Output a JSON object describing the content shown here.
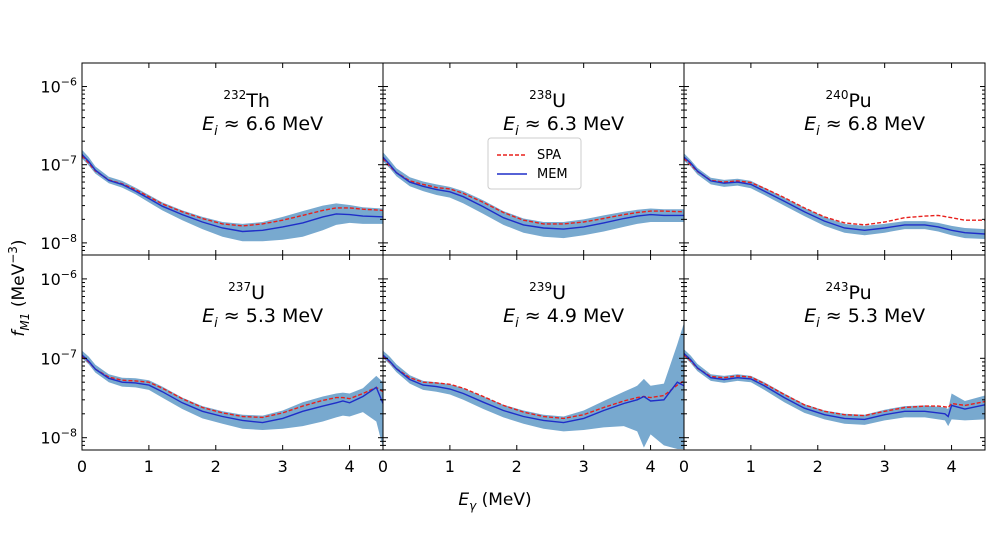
{
  "chart_data": {
    "type": "line",
    "xlabel_main": "E",
    "xlabel_sub": "γ",
    "xlabel_unit": " (MeV)",
    "ylabel_main": "f",
    "ylabel_sub": "M1",
    "ylabel_unit": " (MeV",
    "ylabel_exp": "−3",
    "ylabel_close": ")",
    "xlim": [
      0,
      4.5
    ],
    "ylim": [
      7e-09,
      2e-06
    ],
    "yscale": "log",
    "x_ticks": [
      0,
      1,
      2,
      3,
      4
    ],
    "y_ticks": [
      {
        "value": 1e-06,
        "base": "10",
        "exp": "−6"
      },
      {
        "value": 1e-07,
        "base": "10",
        "exp": "−7"
      },
      {
        "value": 1e-08,
        "base": "10",
        "exp": "−8"
      }
    ],
    "legend": {
      "position": "inside panel 2 (upper left area)",
      "entries": [
        {
          "name": "SPA",
          "color": "#e8201c",
          "style": "dashed"
        },
        {
          "name": "MEM",
          "color": "#1f2ec8",
          "style": "solid"
        }
      ]
    },
    "band_color": "#78a9cf",
    "panels": [
      {
        "nucleus_mass": "232",
        "nucleus_symbol": "Th",
        "energy_label": "E",
        "energy_sub": "i",
        "energy_value": " ≈ 6.6 MeV",
        "x": [
          0,
          0.1,
          0.2,
          0.4,
          0.6,
          0.8,
          1.0,
          1.2,
          1.5,
          1.8,
          2.1,
          2.4,
          2.7,
          3.0,
          3.3,
          3.6,
          3.8,
          4.0,
          4.2,
          4.5
        ],
        "mem": [
          1.35e-07,
          1.1e-07,
          8.5e-08,
          6.3e-08,
          5.6e-08,
          4.6e-08,
          3.7e-08,
          2.95e-08,
          2.3e-08,
          1.85e-08,
          1.55e-08,
          1.4e-08,
          1.45e-08,
          1.6e-08,
          1.8e-08,
          2.15e-08,
          2.35e-08,
          2.3e-08,
          2.2e-08,
          2.15e-08
        ],
        "spa": [
          1.3e-07,
          1.05e-07,
          8.3e-08,
          6.4e-08,
          5.7e-08,
          4.8e-08,
          3.9e-08,
          3.15e-08,
          2.5e-08,
          2.05e-08,
          1.75e-08,
          1.65e-08,
          1.75e-08,
          1.95e-08,
          2.25e-08,
          2.6e-08,
          2.8e-08,
          2.8e-08,
          2.7e-08,
          2.6e-08
        ],
        "lo": [
          1.2e-07,
          9.8e-08,
          7.7e-08,
          5.8e-08,
          5.1e-08,
          4.2e-08,
          3.3e-08,
          2.6e-08,
          1.95e-08,
          1.5e-08,
          1.2e-08,
          1.05e-08,
          1.05e-08,
          1.1e-08,
          1.2e-08,
          1.45e-08,
          1.7e-08,
          1.8e-08,
          1.75e-08,
          1.75e-08
        ],
        "hi": [
          1.55e-07,
          1.25e-07,
          9.5e-08,
          7e-08,
          6.2e-08,
          5.1e-08,
          4.1e-08,
          3.3e-08,
          2.6e-08,
          2.15e-08,
          1.85e-08,
          1.75e-08,
          1.85e-08,
          2.15e-08,
          2.55e-08,
          3e-08,
          3.2e-08,
          3.05e-08,
          2.85e-08,
          2.75e-08
        ]
      },
      {
        "nucleus_mass": "238",
        "nucleus_symbol": "U",
        "energy_label": "E",
        "energy_sub": "i",
        "energy_value": " ≈ 6.3 MeV",
        "x": [
          0,
          0.1,
          0.2,
          0.4,
          0.6,
          0.8,
          1.0,
          1.2,
          1.5,
          1.8,
          2.1,
          2.4,
          2.7,
          3.0,
          3.3,
          3.6,
          3.8,
          4.0,
          4.2,
          4.5
        ],
        "mem": [
          1.25e-07,
          1e-07,
          7.9e-08,
          6e-08,
          5.3e-08,
          4.8e-08,
          4.5e-08,
          3.9e-08,
          2.9e-08,
          2.1e-08,
          1.7e-08,
          1.55e-08,
          1.5e-08,
          1.6e-08,
          1.8e-08,
          2.05e-08,
          2.2e-08,
          2.3e-08,
          2.25e-08,
          2.25e-08
        ],
        "spa": [
          1.2e-07,
          9.6e-08,
          7.9e-08,
          6.2e-08,
          5.6e-08,
          5.1e-08,
          4.9e-08,
          4.3e-08,
          3.3e-08,
          2.45e-08,
          1.95e-08,
          1.75e-08,
          1.75e-08,
          1.85e-08,
          2.05e-08,
          2.3e-08,
          2.45e-08,
          2.55e-08,
          2.55e-08,
          2.5e-08
        ],
        "lo": [
          1.1e-07,
          9e-08,
          7.1e-08,
          5.3e-08,
          4.6e-08,
          4.1e-08,
          3.8e-08,
          3.2e-08,
          2.35e-08,
          1.7e-08,
          1.35e-08,
          1.2e-08,
          1.15e-08,
          1.25e-08,
          1.4e-08,
          1.6e-08,
          1.75e-08,
          1.85e-08,
          1.85e-08,
          1.85e-08
        ],
        "hi": [
          1.45e-07,
          1.15e-07,
          9e-08,
          6.9e-08,
          6.1e-08,
          5.6e-08,
          5.2e-08,
          4.6e-08,
          3.5e-08,
          2.55e-08,
          2.05e-08,
          1.85e-08,
          1.85e-08,
          2e-08,
          2.25e-08,
          2.5e-08,
          2.65e-08,
          2.75e-08,
          2.7e-08,
          2.7e-08
        ]
      },
      {
        "nucleus_mass": "240",
        "nucleus_symbol": "Pu",
        "energy_label": "E",
        "energy_sub": "i",
        "energy_value": " ≈ 6.8 MeV",
        "x": [
          0,
          0.1,
          0.2,
          0.4,
          0.6,
          0.8,
          1.0,
          1.2,
          1.5,
          1.8,
          2.1,
          2.4,
          2.7,
          3.0,
          3.3,
          3.6,
          3.8,
          4.0,
          4.2,
          4.5
        ],
        "mem": [
          1.25e-07,
          1.05e-07,
          8.3e-08,
          6.2e-08,
          5.8e-08,
          6e-08,
          5.6e-08,
          4.6e-08,
          3.4e-08,
          2.5e-08,
          1.9e-08,
          1.55e-08,
          1.45e-08,
          1.55e-08,
          1.7e-08,
          1.7e-08,
          1.6e-08,
          1.45e-08,
          1.35e-08,
          1.3e-08
        ],
        "spa": [
          1.2e-07,
          1e-07,
          8.2e-08,
          6.3e-08,
          6e-08,
          6.2e-08,
          5.9e-08,
          5e-08,
          3.8e-08,
          2.8e-08,
          2.15e-08,
          1.8e-08,
          1.7e-08,
          1.85e-08,
          2.1e-08,
          2.2e-08,
          2.25e-08,
          2.1e-08,
          1.95e-08,
          1.95e-08
        ],
        "lo": [
          1.12e-07,
          9.5e-08,
          7.5e-08,
          5.6e-08,
          5.2e-08,
          5.4e-08,
          5e-08,
          4.1e-08,
          3e-08,
          2.2e-08,
          1.65e-08,
          1.35e-08,
          1.25e-08,
          1.35e-08,
          1.5e-08,
          1.5e-08,
          1.4e-08,
          1.25e-08,
          1.15e-08,
          1.12e-08
        ],
        "hi": [
          1.4e-07,
          1.15e-07,
          9.1e-08,
          6.8e-08,
          6.4e-08,
          6.6e-08,
          6.2e-08,
          5.1e-08,
          3.8e-08,
          2.8e-08,
          2.15e-08,
          1.75e-08,
          1.65e-08,
          1.75e-08,
          1.9e-08,
          1.9e-08,
          1.8e-08,
          1.65e-08,
          1.55e-08,
          1.5e-08
        ]
      },
      {
        "nucleus_mass": "237",
        "nucleus_symbol": "U",
        "energy_label": "E",
        "energy_sub": "i",
        "energy_value": " ≈ 5.3 MeV",
        "x": [
          0,
          0.1,
          0.2,
          0.4,
          0.6,
          0.8,
          1.0,
          1.2,
          1.5,
          1.8,
          2.1,
          2.4,
          2.7,
          3.0,
          3.3,
          3.6,
          3.8,
          3.9,
          4.0,
          4.2,
          4.4,
          4.5
        ],
        "mem": [
          1.1e-07,
          9.2e-08,
          7.3e-08,
          5.6e-08,
          5e-08,
          4.9e-08,
          4.6e-08,
          3.8e-08,
          2.75e-08,
          2.15e-08,
          1.85e-08,
          1.65e-08,
          1.55e-08,
          1.75e-08,
          2.15e-08,
          2.5e-08,
          2.75e-08,
          2.9e-08,
          2.75e-08,
          3.3e-08,
          4.3e-08,
          2.7e-08
        ],
        "spa": [
          1.05e-07,
          9e-08,
          7.3e-08,
          5.8e-08,
          5.3e-08,
          5.2e-08,
          5e-08,
          4.2e-08,
          3.1e-08,
          2.4e-08,
          2.05e-08,
          1.85e-08,
          1.8e-08,
          2.05e-08,
          2.5e-08,
          2.95e-08,
          3.2e-08,
          3.2e-08,
          3.1e-08,
          3.6e-08,
          4.3e-08,
          3.8e-08
        ],
        "lo": [
          1e-07,
          8.4e-08,
          6.6e-08,
          5e-08,
          4.4e-08,
          4.3e-08,
          4e-08,
          3.2e-08,
          2.3e-08,
          1.75e-08,
          1.5e-08,
          1.3e-08,
          1.25e-08,
          1.3e-08,
          1.4e-08,
          1.6e-08,
          1.8e-08,
          1.9e-08,
          1.85e-08,
          2.1e-08,
          1.6e-08,
          7.5e-09
        ],
        "hi": [
          1.25e-07,
          1.05e-07,
          8.3e-08,
          6.3e-08,
          5.7e-08,
          5.6e-08,
          5.3e-08,
          4.4e-08,
          3.2e-08,
          2.5e-08,
          2.15e-08,
          1.95e-08,
          1.9e-08,
          2.2e-08,
          2.8e-08,
          3.3e-08,
          3.6e-08,
          3.7e-08,
          3.6e-08,
          4.2e-08,
          6e-08,
          5e-08
        ]
      },
      {
        "nucleus_mass": "239",
        "nucleus_symbol": "U",
        "energy_label": "E",
        "energy_sub": "i",
        "energy_value": " ≈ 4.9 MeV",
        "x": [
          0,
          0.1,
          0.2,
          0.4,
          0.6,
          0.8,
          1.0,
          1.2,
          1.5,
          1.8,
          2.1,
          2.4,
          2.7,
          3.0,
          3.3,
          3.6,
          3.8,
          3.9,
          4.0,
          4.2,
          4.4,
          4.5
        ],
        "mem": [
          1.1e-07,
          9.2e-08,
          7.4e-08,
          5.4e-08,
          4.6e-08,
          4.4e-08,
          4.1e-08,
          3.6e-08,
          2.8e-08,
          2.2e-08,
          1.85e-08,
          1.65e-08,
          1.55e-08,
          1.75e-08,
          2.2e-08,
          2.7e-08,
          3e-08,
          3.3e-08,
          2.9e-08,
          3e-08,
          5e-08,
          4.5e-08
        ],
        "spa": [
          1.05e-07,
          9e-08,
          7.4e-08,
          5.7e-08,
          5e-08,
          4.9e-08,
          4.7e-08,
          4.2e-08,
          3.3e-08,
          2.55e-08,
          2.1e-08,
          1.85e-08,
          1.75e-08,
          1.95e-08,
          2.4e-08,
          2.9e-08,
          3.2e-08,
          3.3e-08,
          3.2e-08,
          3.4e-08,
          4.6e-08,
          5.2e-08
        ],
        "lo": [
          1e-07,
          8.4e-08,
          6.7e-08,
          4.8e-08,
          4e-08,
          3.8e-08,
          3.5e-08,
          3e-08,
          2.3e-08,
          1.8e-08,
          1.5e-08,
          1.3e-08,
          1.2e-08,
          1.25e-08,
          1.35e-08,
          1.4e-08,
          1.2e-08,
          7.5e-09,
          1.1e-08,
          8e-09,
          7.2e-09,
          7.2e-09
        ],
        "hi": [
          1.25e-07,
          1.05e-07,
          8.4e-08,
          6.1e-08,
          5.2e-08,
          5e-08,
          4.7e-08,
          4.2e-08,
          3.3e-08,
          2.6e-08,
          2.2e-08,
          1.95e-08,
          1.85e-08,
          2.2e-08,
          2.9e-08,
          3.8e-08,
          4.5e-08,
          5.5e-08,
          4.5e-08,
          4.8e-08,
          1.5e-07,
          2.8e-07
        ]
      },
      {
        "nucleus_mass": "243",
        "nucleus_symbol": "Pu",
        "energy_label": "E",
        "energy_sub": "i",
        "energy_value": " ≈ 5.3 MeV",
        "x": [
          0,
          0.1,
          0.2,
          0.4,
          0.6,
          0.8,
          1.0,
          1.2,
          1.5,
          1.8,
          2.1,
          2.4,
          2.7,
          3.0,
          3.3,
          3.6,
          3.8,
          3.9,
          3.95,
          4.0,
          4.2,
          4.5
        ],
        "mem": [
          1.15e-07,
          9.6e-08,
          7.6e-08,
          5.7e-08,
          5.4e-08,
          5.7e-08,
          5.5e-08,
          4.5e-08,
          3.2e-08,
          2.35e-08,
          1.95e-08,
          1.75e-08,
          1.7e-08,
          1.95e-08,
          2.15e-08,
          2.15e-08,
          2.05e-08,
          2e-08,
          1.85e-08,
          2.55e-08,
          2.3e-08,
          2.6e-08
        ],
        "spa": [
          1.1e-07,
          9.3e-08,
          7.5e-08,
          5.9e-08,
          5.7e-08,
          6e-08,
          5.8e-08,
          4.8e-08,
          3.5e-08,
          2.6e-08,
          2.15e-08,
          1.95e-08,
          1.9e-08,
          2.15e-08,
          2.4e-08,
          2.5e-08,
          2.5e-08,
          2.45e-08,
          2.4e-08,
          2.7e-08,
          2.55e-08,
          2.85e-08
        ],
        "lo": [
          1.05e-07,
          8.7e-08,
          6.9e-08,
          5.2e-08,
          4.9e-08,
          5.2e-08,
          5e-08,
          4e-08,
          2.8e-08,
          2.05e-08,
          1.7e-08,
          1.5e-08,
          1.45e-08,
          1.65e-08,
          1.8e-08,
          1.8e-08,
          1.7e-08,
          1.65e-08,
          1.4e-08,
          1.7e-08,
          1.65e-08,
          1.7e-08
        ],
        "hi": [
          1.3e-07,
          1.08e-07,
          8.5e-08,
          6.3e-08,
          6e-08,
          6.3e-08,
          6e-08,
          5e-08,
          3.6e-08,
          2.65e-08,
          2.2e-08,
          2e-08,
          1.95e-08,
          2.25e-08,
          2.5e-08,
          2.55e-08,
          2.45e-08,
          2.4e-08,
          2.3e-08,
          3.6e-08,
          2.9e-08,
          3.4e-08
        ]
      }
    ]
  }
}
